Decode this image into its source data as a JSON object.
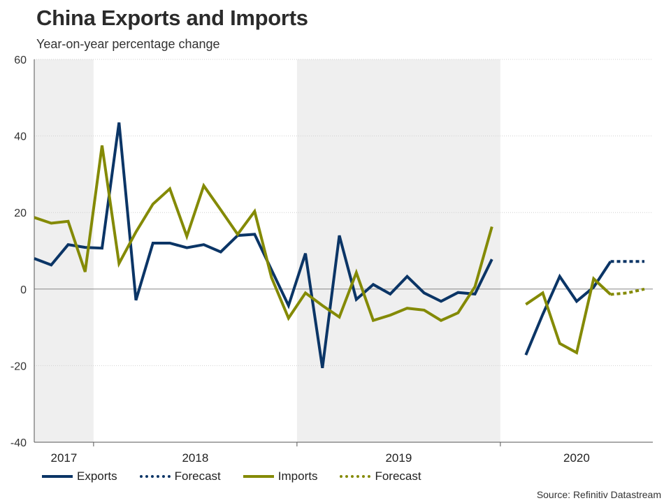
{
  "title": "China Exports and Imports",
  "subtitle": "Year-on-year percentage change",
  "source": "Source: Refinitiv Datastream",
  "colors": {
    "exports": "#0b3566",
    "imports": "#848a05",
    "shade": "#efefef",
    "grid": "#d0d0d0",
    "axis": "#555555"
  },
  "legend": [
    {
      "label": "Exports",
      "series": "exports",
      "dashed": false
    },
    {
      "label": "Forecast",
      "series": "exports",
      "dashed": true
    },
    {
      "label": "Imports",
      "series": "imports",
      "dashed": false
    },
    {
      "label": "Forecast",
      "series": "imports",
      "dashed": true
    }
  ],
  "chart_data": {
    "type": "line",
    "ylim": [
      -40,
      60
    ],
    "yticks": [
      -40,
      -20,
      0,
      20,
      40,
      60
    ],
    "grid": true,
    "legend_position": "bottom",
    "x_period": "monthly, Sep 2017 - Jun 2020",
    "shaded_years": [
      "2017",
      "2019"
    ],
    "year_labels": [
      "2017",
      "2018",
      "2019",
      "2020"
    ],
    "series": [
      {
        "name": "Exports",
        "key": "exports",
        "points": [
          [
            "2017-09",
            8.0
          ],
          [
            "2017-10",
            6.3
          ],
          [
            "2017-11",
            11.6
          ],
          [
            "2017-12",
            10.9
          ],
          [
            "2018-01",
            10.7
          ],
          [
            "2018-02",
            43.5
          ],
          [
            "2018-03",
            -2.9
          ],
          [
            "2018-04",
            12.0
          ],
          [
            "2018-05",
            12.0
          ],
          [
            "2018-06",
            10.8
          ],
          [
            "2018-07",
            11.6
          ],
          [
            "2018-08",
            9.7
          ],
          [
            "2018-09",
            14.0
          ],
          [
            "2018-10",
            14.3
          ],
          [
            "2018-11",
            5.0
          ],
          [
            "2018-12",
            -4.3
          ],
          [
            "2019-01",
            9.3
          ],
          [
            "2019-02",
            -20.6
          ],
          [
            "2019-03",
            14.0
          ],
          [
            "2019-04",
            -2.7
          ],
          [
            "2019-05",
            1.2
          ],
          [
            "2019-06",
            -1.3
          ],
          [
            "2019-07",
            3.3
          ],
          [
            "2019-08",
            -1.0
          ],
          [
            "2019-09",
            -3.2
          ],
          [
            "2019-10",
            -0.9
          ],
          [
            "2019-11",
            -1.3
          ],
          [
            "2019-12",
            7.8
          ],
          [
            "2020-02",
            -17.2
          ],
          [
            "2020-03",
            -6.6
          ],
          [
            "2020-04",
            3.3
          ],
          [
            "2020-05",
            -3.2
          ],
          [
            "2020-06",
            0.5
          ],
          [
            "2020-07",
            7.2
          ]
        ]
      },
      {
        "name": "Forecast",
        "key": "exports",
        "forecast": true,
        "points": [
          [
            "2020-07",
            7.2
          ],
          [
            "2020-08",
            7.2
          ],
          [
            "2020-09",
            7.2
          ]
        ]
      },
      {
        "name": "Imports",
        "key": "imports",
        "points": [
          [
            "2017-09",
            18.7
          ],
          [
            "2017-10",
            17.2
          ],
          [
            "2017-11",
            17.7
          ],
          [
            "2017-12",
            4.5
          ],
          [
            "2018-01",
            37.5
          ],
          [
            "2018-02",
            6.7
          ],
          [
            "2018-03",
            14.9
          ],
          [
            "2018-04",
            22.2
          ],
          [
            "2018-05",
            26.2
          ],
          [
            "2018-06",
            13.8
          ],
          [
            "2018-07",
            27.0
          ],
          [
            "2018-08",
            20.7
          ],
          [
            "2018-09",
            14.3
          ],
          [
            "2018-10",
            20.3
          ],
          [
            "2018-11",
            3.0
          ],
          [
            "2018-12",
            -7.6
          ],
          [
            "2019-01",
            -1.0
          ],
          [
            "2019-02",
            -4.3
          ],
          [
            "2019-03",
            -7.3
          ],
          [
            "2019-04",
            4.3
          ],
          [
            "2019-05",
            -8.2
          ],
          [
            "2019-06",
            -6.8
          ],
          [
            "2019-07",
            -5.0
          ],
          [
            "2019-08",
            -5.5
          ],
          [
            "2019-09",
            -8.2
          ],
          [
            "2019-10",
            -6.2
          ],
          [
            "2019-11",
            0.6
          ],
          [
            "2019-12",
            16.3
          ],
          [
            "2020-02",
            -4.0
          ],
          [
            "2020-03",
            -1.0
          ],
          [
            "2020-04",
            -14.2
          ],
          [
            "2020-05",
            -16.6
          ],
          [
            "2020-06",
            2.7
          ],
          [
            "2020-07",
            -1.4
          ]
        ]
      },
      {
        "name": "Forecast",
        "key": "imports",
        "forecast": true,
        "points": [
          [
            "2020-07",
            -1.4
          ],
          [
            "2020-08",
            -1.0
          ],
          [
            "2020-09",
            0.0
          ]
        ]
      }
    ]
  }
}
